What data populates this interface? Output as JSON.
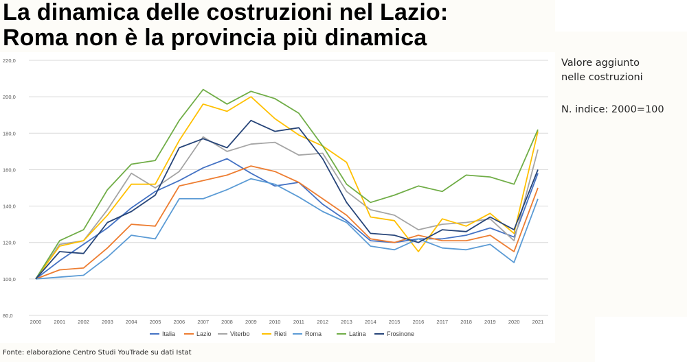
{
  "title_line1": "La dinamica delle costruzioni nel Lazio:",
  "title_line2": "Roma non è la provincia più dinamica",
  "side_note": {
    "line1": "Valore aggiunto",
    "line2": "nelle costruzioni",
    "line3": "N. indice: 2000=100"
  },
  "source": "Fonte: elaborazione Centro Studi YouTrade su dati Istat",
  "chart_data": {
    "type": "line",
    "x": [
      "2000",
      "2001",
      "2002",
      "2003",
      "2004",
      "2005",
      "2006",
      "2007",
      "2008",
      "2009",
      "2010",
      "2011",
      "2012",
      "2013",
      "2014",
      "2015",
      "2016",
      "2017",
      "2018",
      "2019",
      "2020",
      "2021"
    ],
    "ylim": [
      80,
      220
    ],
    "yticks": [
      "80,0",
      "100,0",
      "120,0",
      "140,0",
      "160,0",
      "180,0",
      "200,0",
      "220,0"
    ],
    "grid": true,
    "legend_position": "bottom",
    "series": [
      {
        "name": "Italia",
        "color": "#4472c4",
        "values": [
          100,
          110,
          119,
          128,
          139,
          148,
          154,
          161,
          166,
          158,
          151,
          153,
          141,
          132,
          121,
          120,
          122,
          122,
          124,
          128,
          123,
          158
        ]
      },
      {
        "name": "Lazio",
        "color": "#ed7d31",
        "values": [
          100,
          105,
          106,
          117,
          130,
          129,
          151,
          154,
          157,
          162,
          159,
          153,
          144,
          135,
          122,
          120,
          124,
          121,
          121,
          124,
          115,
          150
        ]
      },
      {
        "name": "Viterbo",
        "color": "#a5a5a5",
        "values": [
          100,
          119,
          121,
          138,
          158,
          150,
          159,
          178,
          170,
          174,
          175,
          168,
          169,
          148,
          138,
          135,
          127,
          130,
          131,
          133,
          121,
          171
        ]
      },
      {
        "name": "Rieti",
        "color": "#ffc000",
        "values": [
          100,
          118,
          121,
          135,
          152,
          152,
          176,
          196,
          192,
          200,
          188,
          179,
          173,
          164,
          134,
          132,
          115,
          133,
          129,
          136,
          125,
          181
        ]
      },
      {
        "name": "Roma",
        "color": "#5b9bd5",
        "values": [
          100,
          101,
          102,
          112,
          124,
          122,
          144,
          144,
          149,
          155,
          152,
          145,
          137,
          131,
          118,
          116,
          122,
          117,
          116,
          119,
          109,
          144
        ]
      },
      {
        "name": "Latina",
        "color": "#70ad47",
        "values": [
          100,
          121,
          127,
          149,
          163,
          165,
          187,
          204,
          196,
          203,
          199,
          191,
          173,
          152,
          142,
          146,
          151,
          148,
          157,
          156,
          152,
          182
        ]
      },
      {
        "name": "Frosinone",
        "color": "#264478",
        "values": [
          100,
          115,
          114,
          131,
          137,
          146,
          172,
          177,
          172,
          187,
          181,
          183,
          166,
          142,
          125,
          124,
          120,
          127,
          126,
          134,
          127,
          160
        ]
      }
    ]
  }
}
